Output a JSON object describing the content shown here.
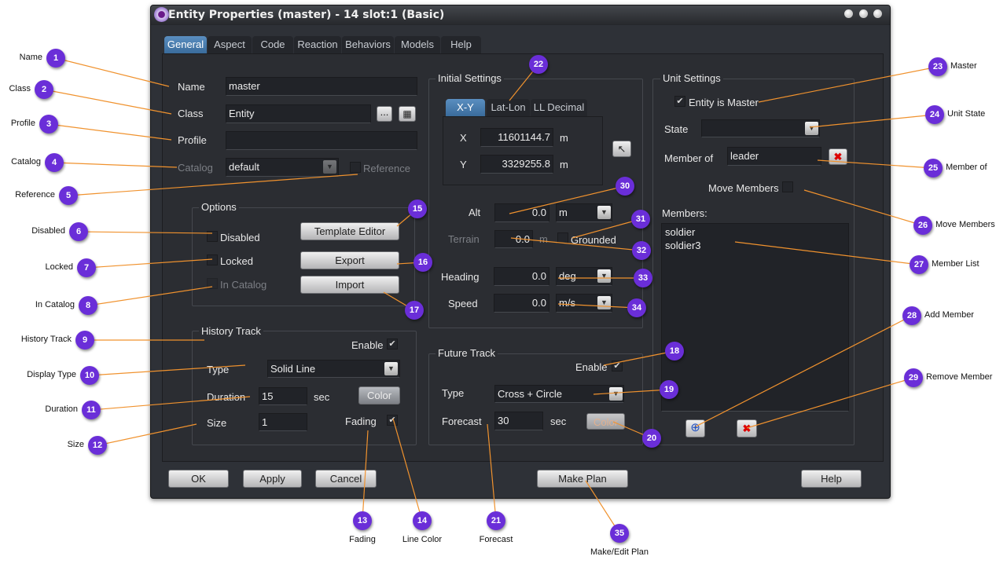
{
  "window": {
    "title": "Entity Properties (master) - 14 slot:1 (Basic)"
  },
  "tabs": [
    "General",
    "Aspect",
    "Code",
    "Reaction",
    "Behaviors",
    "Models",
    "Help"
  ],
  "general": {
    "name_label": "Name",
    "name_value": "master",
    "class_label": "Class",
    "class_value": "Entity",
    "browse_label": "...",
    "profile_label": "Profile",
    "profile_value": "",
    "catalog_label": "Catalog",
    "catalog_value": "default",
    "reference_label": "Reference"
  },
  "options": {
    "title": "Options",
    "disabled": "Disabled",
    "locked": "Locked",
    "in_catalog": "In Catalog",
    "template_editor": "Template Editor",
    "export": "Export",
    "import": "Import"
  },
  "history": {
    "title": "History Track",
    "enable": "Enable",
    "type_label": "Type",
    "type_value": "Solid Line",
    "duration_label": "Duration",
    "duration_value": "15",
    "duration_unit": "sec",
    "color": "Color",
    "size_label": "Size",
    "size_value": "1",
    "fading": "Fading"
  },
  "initial": {
    "title": "Initial Settings",
    "subtabs": [
      "X-Y",
      "Lat-Lon",
      "LL Decimal"
    ],
    "x_label": "X",
    "x_value": "11601144.7",
    "x_unit": "m",
    "y_label": "Y",
    "y_value": "3329255.8",
    "y_unit": "m",
    "alt_label": "Alt",
    "alt_value": "0.0",
    "alt_unit": "m",
    "terrain_label": "Terrain",
    "terrain_value": "0.0",
    "terrain_unit": "m",
    "grounded": "Grounded",
    "heading_label": "Heading",
    "heading_value": "0.0",
    "heading_unit": "deg",
    "speed_label": "Speed",
    "speed_value": "0.0",
    "speed_unit": "m/s"
  },
  "future": {
    "title": "Future Track",
    "enable": "Enable",
    "type_label": "Type",
    "type_value": "Cross + Circle",
    "forecast_label": "Forecast",
    "forecast_value": "30",
    "forecast_unit": "sec",
    "color": "Color"
  },
  "unit": {
    "title": "Unit Settings",
    "is_master": "Entity is Master",
    "state_label": "State",
    "state_value": "",
    "member_of_label": "Member of",
    "member_of_value": "leader",
    "move_members": "Move Members",
    "members_label": "Members:",
    "members": [
      "soldier",
      "soldier3"
    ]
  },
  "footer": {
    "ok": "OK",
    "apply": "Apply",
    "cancel": "Cancel",
    "make_plan": "Make Plan",
    "help": "Help"
  },
  "callouts": [
    {
      "n": "1",
      "label": "Name"
    },
    {
      "n": "2",
      "label": "Class"
    },
    {
      "n": "3",
      "label": "Profile"
    },
    {
      "n": "4",
      "label": "Catalog"
    },
    {
      "n": "5",
      "label": "Reference"
    },
    {
      "n": "6",
      "label": "Disabled"
    },
    {
      "n": "7",
      "label": "Locked"
    },
    {
      "n": "8",
      "label": "In Catalog"
    },
    {
      "n": "9",
      "label": "History Track"
    },
    {
      "n": "10",
      "label": "Display Type"
    },
    {
      "n": "11",
      "label": "Duration"
    },
    {
      "n": "12",
      "label": "Size"
    },
    {
      "n": "13",
      "label": "Fading"
    },
    {
      "n": "14",
      "label": "Line Color"
    },
    {
      "n": "15",
      "label": ""
    },
    {
      "n": "16",
      "label": ""
    },
    {
      "n": "17",
      "label": ""
    },
    {
      "n": "18",
      "label": ""
    },
    {
      "n": "19",
      "label": ""
    },
    {
      "n": "20",
      "label": ""
    },
    {
      "n": "21",
      "label": "Forecast"
    },
    {
      "n": "22",
      "label": ""
    },
    {
      "n": "23",
      "label": "Master"
    },
    {
      "n": "24",
      "label": "Unit State"
    },
    {
      "n": "25",
      "label": "Member of"
    },
    {
      "n": "26",
      "label": "Move Members"
    },
    {
      "n": "27",
      "label": "Member List"
    },
    {
      "n": "28",
      "label": "Add Member"
    },
    {
      "n": "29",
      "label": "Remove Member"
    },
    {
      "n": "30",
      "label": ""
    },
    {
      "n": "31",
      "label": ""
    },
    {
      "n": "32",
      "label": ""
    },
    {
      "n": "33",
      "label": ""
    },
    {
      "n": "34",
      "label": ""
    },
    {
      "n": "35",
      "label": "Make/Edit Plan"
    }
  ],
  "colors": {
    "badge": "#6a2ed8",
    "leader_line": "#f0922e",
    "active_tab": "#3f76a8"
  }
}
